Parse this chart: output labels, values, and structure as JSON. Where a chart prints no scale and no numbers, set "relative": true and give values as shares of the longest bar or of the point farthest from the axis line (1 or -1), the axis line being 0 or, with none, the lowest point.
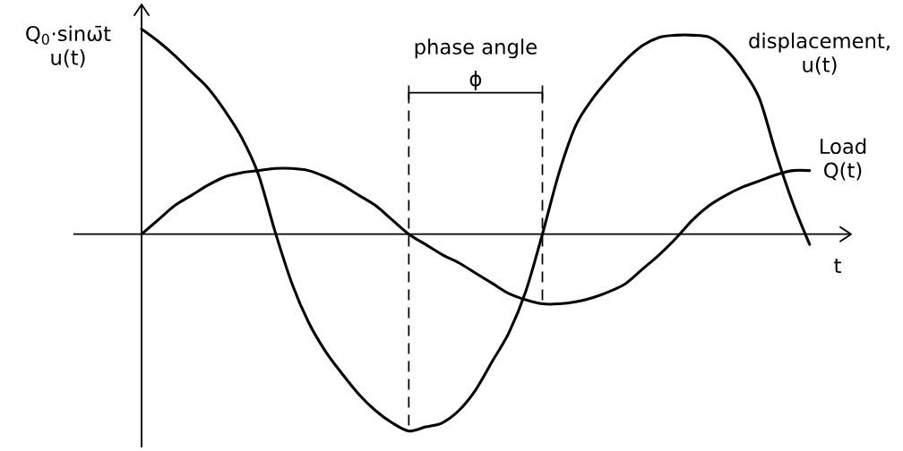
{
  "chart_data": {
    "type": "line",
    "relative": true,
    "xlabel": "t",
    "ylabel": "Q$_{0}$·sinω̄t u(t)",
    "categories": [
      null,
      null,
      null,
      null,
      null,
      null,
      null,
      null,
      null,
      null,
      null,
      null,
      null,
      null,
      null,
      null,
      null,
      null,
      null,
      null,
      null,
      null,
      null,
      null,
      null,
      null,
      null,
      null,
      null,
      null,
      null,
      null,
      null,
      null,
      null,
      null,
      null,
      null,
      null,
      null,
      null
    ],
    "series": [
      {
        "name": "displacement, u(t)",
        "color": "#000000",
        "values": [
          1.0,
          0.94,
          0.87,
          0.79,
          0.71,
          0.6,
          0.47,
          0.29,
          0.01,
          -0.24,
          -0.43,
          -0.57,
          -0.68,
          -0.78,
          -0.86,
          -0.92,
          -0.96,
          -0.94,
          -0.92,
          -0.86,
          -0.76,
          -0.62,
          -0.48,
          -0.28,
          0.0,
          0.3,
          0.53,
          0.66,
          0.76,
          0.85,
          0.92,
          0.96,
          0.97,
          0.97,
          0.96,
          0.9,
          0.8,
          0.66,
          0.39,
          0.15,
          -0.05
        ]
      },
      {
        "name": "Load Q(t)",
        "color": "#000000",
        "values": [
          0,
          0.07,
          0.14,
          0.19,
          0.24,
          0.28,
          0.3,
          0.31,
          0.32,
          0.32,
          0.31,
          0.28,
          0.24,
          0.19,
          0.14,
          0.07,
          0,
          -0.05,
          -0.1,
          -0.14,
          -0.19,
          -0.24,
          -0.29,
          -0.32,
          -0.34,
          -0.34,
          -0.33,
          -0.31,
          -0.28,
          -0.24,
          -0.17,
          -0.1,
          -0.02,
          0.07,
          0.14,
          0.19,
          0.23,
          0.26,
          0.29,
          0.31,
          0.31
        ]
      }
    ],
    "annotations": [
      "phase angle",
      "ϕ"
    ],
    "legend": false,
    "marker": "none",
    "line_style": "solid"
  }
}
